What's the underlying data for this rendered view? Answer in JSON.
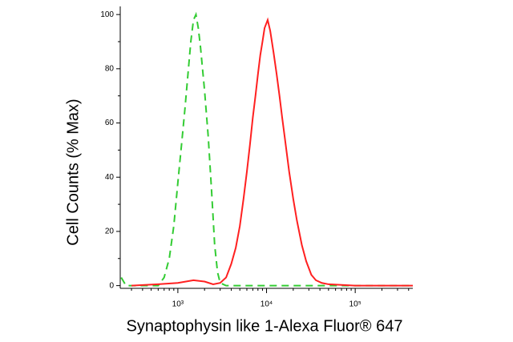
{
  "chart_data": {
    "type": "line",
    "xlabel": "Synaptophysin like 1-Alexa Fluor® 647",
    "ylabel": "Cell Counts (% Max)",
    "xscale": "log",
    "xlim": [
      224,
      446000
    ],
    "ylim": [
      -1,
      103
    ],
    "xticks": [
      {
        "value": 1000,
        "label": "10³"
      },
      {
        "value": 10000,
        "label": "10⁴"
      },
      {
        "value": 100000,
        "label": "10⁵"
      }
    ],
    "xminorticks": [
      300,
      400,
      500,
      600,
      700,
      800,
      900,
      2000,
      3000,
      4000,
      5000,
      6000,
      7000,
      8000,
      9000,
      20000,
      30000,
      40000,
      50000,
      60000,
      70000,
      80000,
      90000,
      200000,
      300000,
      400000
    ],
    "yticks": [
      0,
      20,
      40,
      60,
      80,
      100
    ],
    "yminorticks": [
      10,
      30,
      50,
      70,
      90
    ],
    "grid": false,
    "series": [
      {
        "color": "#33cc33",
        "dash": true,
        "x": [
          230,
          260,
          600,
          700,
          800,
          900,
          1000,
          1100,
          1200,
          1300,
          1400,
          1500,
          1600,
          1700,
          1800,
          2000,
          2200,
          2400,
          2600,
          2800,
          3000,
          3500,
          20000,
          446000
        ],
        "values": [
          3,
          0,
          0,
          3,
          10,
          22,
          38,
          52,
          65,
          78,
          90,
          98,
          100,
          95,
          88,
          72,
          55,
          35,
          15,
          5,
          1,
          0,
          0,
          0
        ]
      },
      {
        "color": "#ff2020",
        "dash": false,
        "x": [
          300,
          600,
          1000,
          1500,
          2000,
          2500,
          3000,
          3500,
          4000,
          4500,
          5000,
          5500,
          6000,
          6500,
          7000,
          7500,
          8000,
          8500,
          9000,
          9500,
          10300,
          11000,
          12000,
          13000,
          14000,
          15000,
          16000,
          18000,
          20000,
          22000,
          25000,
          28000,
          32000,
          36000,
          42000,
          50000,
          100000,
          446000
        ],
        "values": [
          0,
          0.5,
          1,
          2,
          1.5,
          0.5,
          1,
          3,
          8,
          14,
          22,
          32,
          42,
          52,
          62,
          70,
          78,
          85,
          90,
          95,
          98,
          94,
          86,
          78,
          70,
          62,
          55,
          42,
          32,
          24,
          15,
          9,
          4,
          2,
          1,
          0.5,
          0,
          0
        ]
      }
    ]
  }
}
